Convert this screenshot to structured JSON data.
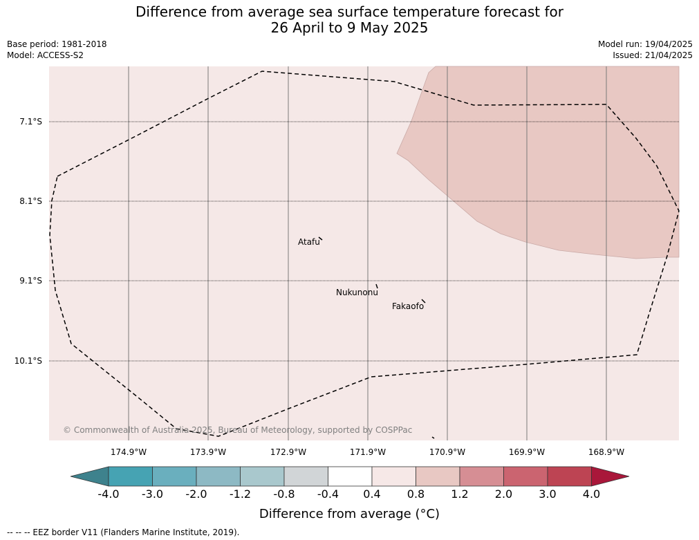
{
  "title_line1": "Difference from average sea surface temperature forecast for",
  "title_line2": "26 April to 9 May 2025",
  "base_period": "Base period: 1981-2018",
  "model": "Model: ACCESS-S2",
  "model_run": "Model run: 19/04/2025",
  "issued": "Issued: 21/04/2025",
  "lat_labels": [
    "7.1°S",
    "8.1°S",
    "9.1°S",
    "10.1°S"
  ],
  "lon_labels": [
    "174.9°W",
    "173.9°W",
    "172.9°W",
    "171.9°W",
    "170.9°W",
    "169.9°W",
    "168.9°W"
  ],
  "places": [
    "Atafu",
    "Nukunonu",
    "Fakaofo"
  ],
  "copyright": "© Commonwealth of Australia 2025, Bureau of Meteorology, supported by COSPPac",
  "colorbar": {
    "ticks": [
      "-4.0",
      "-3.0",
      "-2.0",
      "-1.2",
      "-0.8",
      "-0.4",
      "0.4",
      "0.8",
      "1.2",
      "2.0",
      "3.0",
      "4.0"
    ],
    "colors": [
      "#3e828d",
      "#46a3b3",
      "#6aafbe",
      "#8db9c4",
      "#a9c8cd",
      "#d1d5d7",
      "#ffffff",
      "#f6e8e7",
      "#e8c8c3",
      "#d68e94",
      "#cb6470",
      "#bd4453",
      "#a9173a"
    ],
    "title": "Difference from average (°C)"
  },
  "map": {
    "background_color": "#f5e8e7",
    "warm_patch_color": "#e8c8c3"
  },
  "footer": "--  --  -- EEZ border V11 (Flanders Marine Institute, 2019)."
}
